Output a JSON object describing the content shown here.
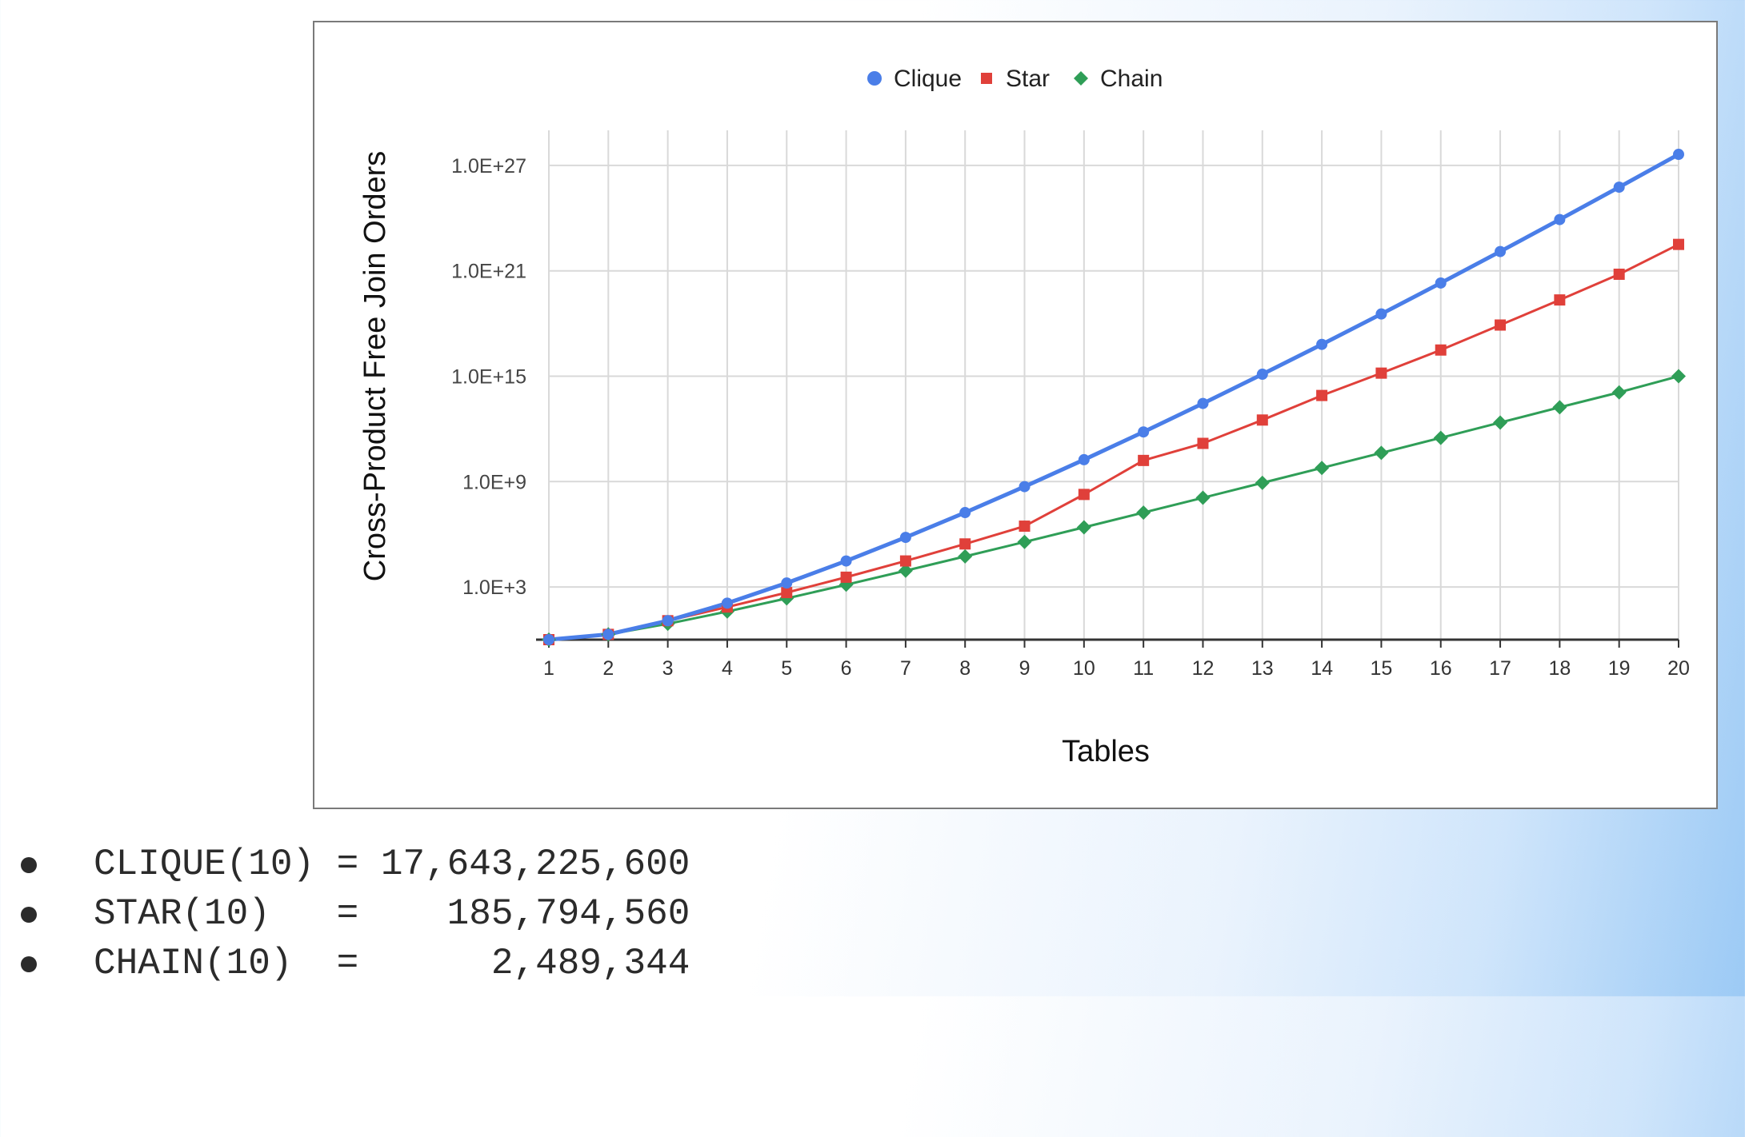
{
  "chart_data": {
    "type": "line",
    "title": "",
    "xlabel": "Tables",
    "ylabel": "Cross-Product Free Join Orders",
    "yscale": "log",
    "ylim": [
      1,
      1e+29
    ],
    "ytick_values": [
      1000.0,
      1000000000.0,
      1000000000000000.0,
      1e+21,
      1e+27
    ],
    "ytick_labels": [
      "1.0E+3",
      "1.0E+9",
      "1.0E+15",
      "1.0E+21",
      "1.0E+27"
    ],
    "x": [
      1,
      2,
      3,
      4,
      5,
      6,
      7,
      8,
      9,
      10,
      11,
      12,
      13,
      14,
      15,
      16,
      17,
      18,
      19,
      20
    ],
    "xtick_labels": [
      "1",
      "2",
      "3",
      "4",
      "5",
      "6",
      "7",
      "8",
      "9",
      "10",
      "11",
      "12",
      "13",
      "14",
      "15",
      "16",
      "17",
      "18",
      "19",
      "20"
    ],
    "legend_position": "top-center",
    "grid": true,
    "series": [
      {
        "name": "Clique",
        "color": "#4a7ee8",
        "marker": "circle",
        "line_width": 5,
        "values": [
          1,
          2,
          12,
          120,
          1680,
          30240,
          665280,
          17297280,
          518918400,
          17643225600,
          670442572800,
          28158588057600,
          1295300000000000.0,
          6.4764e+16,
          3.4975e+18,
          2.0285e+20,
          1.2576e+22,
          8.3e+23,
          5.81e+25,
          4.3e+27
        ]
      },
      {
        "name": "Star",
        "color": "#e0403a",
        "marker": "square",
        "line_width": 3,
        "values": [
          1,
          2,
          12,
          72,
          480,
          3600,
          30240,
          282240,
          2903040,
          185794560,
          16000000000.0,
          150000000000.0,
          3200000000000.0,
          80000000000000.0,
          1500000000000000.0,
          3.1e+16,
          8.2e+17,
          2.2e+19,
          6.4e+20,
          3.2e+22
        ]
      },
      {
        "name": "Chain",
        "color": "#2f9e57",
        "marker": "diamond",
        "line_width": 3,
        "values": [
          1,
          2,
          8,
          40,
          224,
          1344,
          8448,
          54912,
          366080,
          2489344,
          17200000.0,
          120000000.0,
          850000000.0,
          6000000000.0,
          43000000000.0,
          310000000000.0,
          2300000000000.0,
          17000000000000.0,
          120000000000000.0,
          1000000000000000.0
        ]
      }
    ]
  },
  "formulas": [
    {
      "text": "CLIQUE(10) = 17,643,225,600"
    },
    {
      "text": "STAR(10)   =    185,794,560"
    },
    {
      "text": "CHAIN(10)  =      2,489,344"
    }
  ]
}
